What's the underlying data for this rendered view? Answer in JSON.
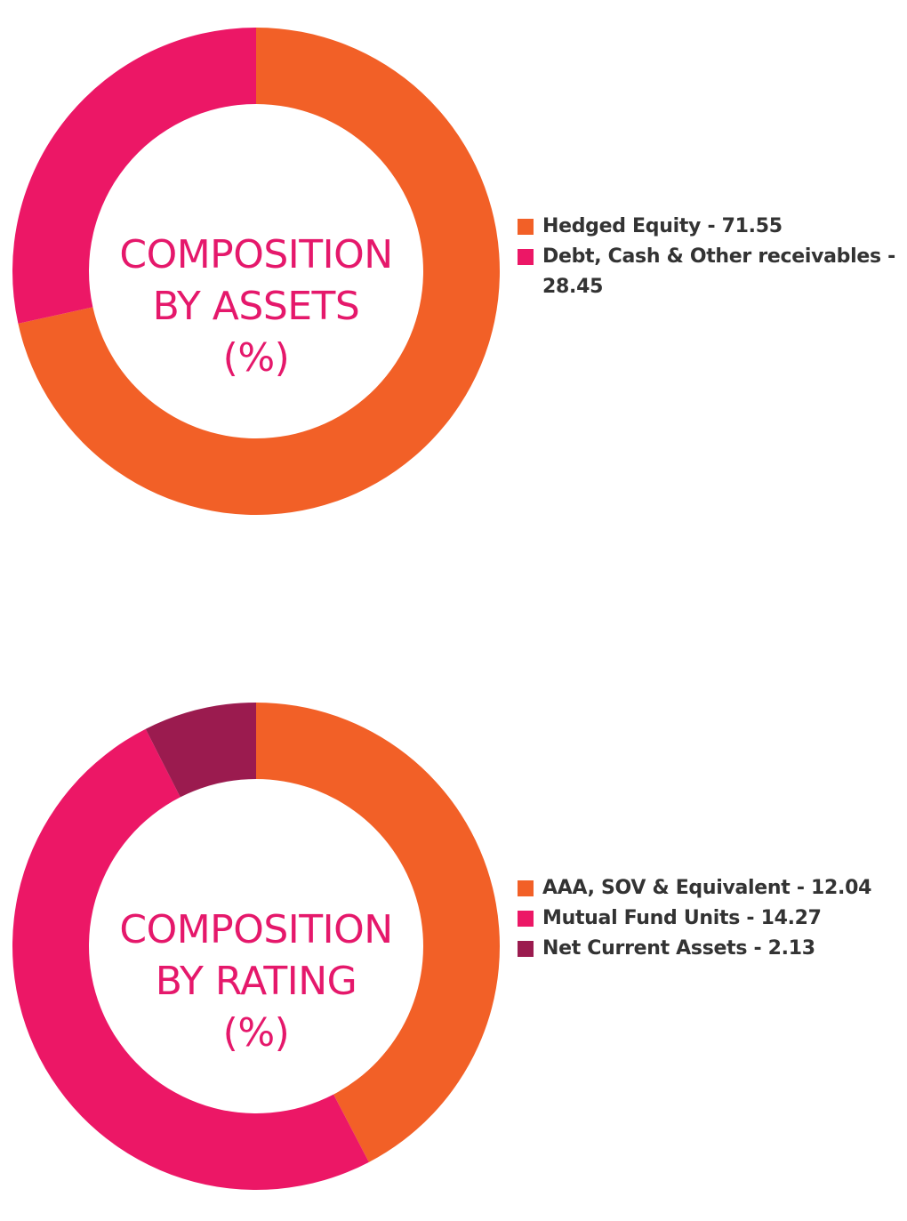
{
  "chart_data": [
    {
      "type": "pie",
      "style": "donut",
      "center_label": [
        "COMPOSITION",
        "BY ASSETS",
        "(%)"
      ],
      "slices": [
        {
          "label": "Hedged Equity - 71.55",
          "value": 71.55,
          "color": "#f26027"
        },
        {
          "label": "Debt, Cash & Other receivables - 28.45",
          "value": 28.45,
          "color": "#ec1766"
        }
      ],
      "legend_placement": "right"
    },
    {
      "type": "pie",
      "style": "donut",
      "center_label": [
        "COMPOSITION",
        "BY RATING",
        "(%)"
      ],
      "slices": [
        {
          "label": "AAA, SOV & Equivalent - 12.04",
          "value": 12.04,
          "color": "#f26027"
        },
        {
          "label": "Mutual Fund Units - 14.27",
          "value": 14.27,
          "color": "#ec1766"
        },
        {
          "label": "Net Current Assets - 2.13",
          "value": 2.13,
          "color": "#9b1b4f"
        }
      ],
      "legend_placement": "right"
    }
  ]
}
